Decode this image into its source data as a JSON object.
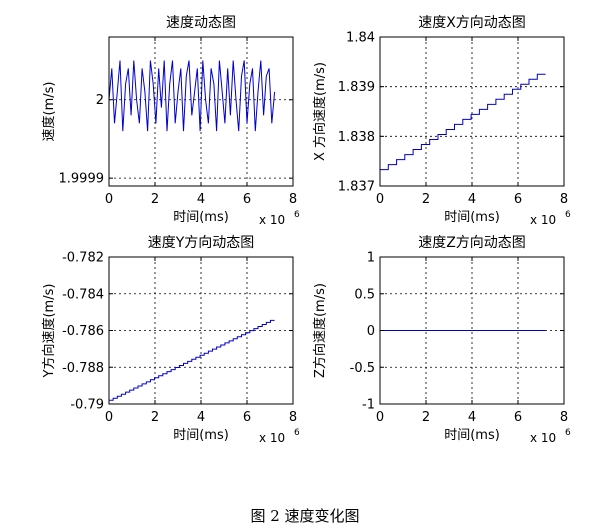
{
  "figure_caption": "图 2  速度变化图",
  "colors": {
    "line": "#0000cc",
    "axis": "#000000",
    "grid": "#000000",
    "background": "#ffffff"
  },
  "chart_data": [
    {
      "type": "line",
      "title": "速度动态图",
      "xlabel": "时间(ms)",
      "ylabel": "速度(m/s)",
      "x_multiplier_label": {
        "base": "x 10",
        "exp": "6"
      },
      "xlim": [
        0,
        8
      ],
      "ylim": [
        1.99989,
        2.00008
      ],
      "x_ticks": [
        0,
        2,
        4,
        6,
        8
      ],
      "x_tick_labels": [
        "0",
        "2",
        "4",
        "6",
        "8"
      ],
      "y_ticks": [
        1.9999,
        2
      ],
      "y_tick_labels": [
        "1.9999",
        "2"
      ],
      "grid": true,
      "series": [
        {
          "x": [
            0.0,
            0.12,
            0.24,
            0.36,
            0.48,
            0.6,
            0.72,
            0.84,
            0.96,
            1.08,
            1.2,
            1.32,
            1.44,
            1.56,
            1.68,
            1.8,
            1.92,
            2.04,
            2.16,
            2.28,
            2.4,
            2.52,
            2.64,
            2.76,
            2.88,
            3.0,
            3.12,
            3.24,
            3.36,
            3.48,
            3.6,
            3.72,
            3.84,
            3.96,
            4.08,
            4.2,
            4.32,
            4.44,
            4.56,
            4.68,
            4.8,
            4.92,
            5.04,
            5.16,
            5.28,
            5.4,
            5.52,
            5.64,
            5.76,
            5.88,
            6.0,
            6.12,
            6.24,
            6.36,
            6.48,
            6.6,
            6.72,
            6.84,
            6.96,
            7.08,
            7.2
          ],
          "y": [
            2.0,
            2.00004,
            1.99997,
            2.00001,
            2.00005,
            1.99996,
            2.00002,
            2.00004,
            1.99998,
            2.00005,
            2.0,
            1.99997,
            2.00004,
            2.00001,
            1.99996,
            2.00005,
            2.00002,
            1.99997,
            2.00004,
            1.99999,
            2.00005,
            1.99996,
            2.00002,
            2.00005,
            1.99997,
            2.00001,
            2.00004,
            1.99996,
            2.00003,
            2.00005,
            1.99998,
            2.00001,
            2.00004,
            1.99996,
            2.00005,
            2.0,
            1.99997,
            2.00004,
            2.00002,
            1.99996,
            2.00005,
            2.00001,
            1.99997,
            2.00004,
            1.99998,
            2.00005,
            2.0,
            1.99996,
            2.00003,
            2.00005,
            1.99997,
            2.00002,
            2.00004,
            1.99996,
            2.00001,
            2.00005,
            1.99998,
            2.00003,
            2.00004,
            1.99997,
            2.00001
          ]
        }
      ]
    },
    {
      "type": "line",
      "title": "速度X方向动态图",
      "xlabel": "时间(ms)",
      "ylabel": "X 方向速度(m/s)",
      "x_multiplier_label": {
        "base": "x 10",
        "exp": "6"
      },
      "xlim": [
        0,
        8
      ],
      "ylim": [
        1.837,
        1.84
      ],
      "x_ticks": [
        0,
        2,
        4,
        6,
        8
      ],
      "x_tick_labels": [
        "0",
        "2",
        "4",
        "6",
        "8"
      ],
      "y_ticks": [
        1.837,
        1.838,
        1.839,
        1.84
      ],
      "y_tick_labels": [
        "1.837",
        "1.838",
        "1.839",
        "1.84"
      ],
      "grid": true,
      "series": [
        {
          "x": [
            0.0,
            7.2
          ],
          "y": [
            1.83733,
            1.83925
          ],
          "step_width": 0.36
        }
      ]
    },
    {
      "type": "line",
      "title": "速度Y方向动态图",
      "xlabel": "时间(ms)",
      "ylabel": "Y方向速度(m/s)",
      "x_multiplier_label": {
        "base": "x 10",
        "exp": "6"
      },
      "xlim": [
        0,
        8
      ],
      "ylim": [
        -0.79,
        -0.782
      ],
      "x_ticks": [
        0,
        2,
        4,
        6,
        8
      ],
      "x_tick_labels": [
        "0",
        "2",
        "4",
        "6",
        "8"
      ],
      "y_ticks": [
        -0.79,
        -0.788,
        -0.786,
        -0.784,
        -0.782
      ],
      "y_tick_labels": [
        "-0.79",
        "-0.788",
        "-0.786",
        "-0.784",
        "-0.782"
      ],
      "grid": true,
      "series": [
        {
          "x": [
            0.0,
            7.2
          ],
          "y": [
            -0.7898,
            -0.78545
          ],
          "step_width": 0.18
        }
      ]
    },
    {
      "type": "line",
      "title": "速度Z方向动态图",
      "xlabel": "时间(ms)",
      "ylabel": "Z方向速度(m/s)",
      "x_multiplier_label": {
        "base": "x 10",
        "exp": "6"
      },
      "xlim": [
        0,
        8
      ],
      "ylim": [
        -1,
        1
      ],
      "x_ticks": [
        0,
        2,
        4,
        6,
        8
      ],
      "x_tick_labels": [
        "0",
        "2",
        "4",
        "6",
        "8"
      ],
      "y_ticks": [
        -1,
        -0.5,
        0,
        0.5,
        1
      ],
      "y_tick_labels": [
        "-1",
        "-0.5",
        "0",
        "0.5",
        "1"
      ],
      "grid": true,
      "series": [
        {
          "x": [
            0.0,
            7.2
          ],
          "y": [
            0,
            0
          ]
        }
      ]
    }
  ]
}
